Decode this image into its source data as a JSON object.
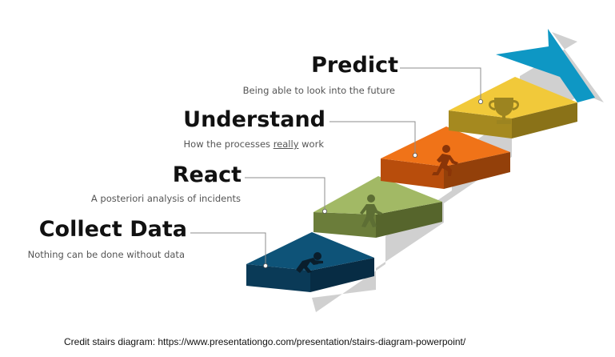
{
  "steps": [
    {
      "title": "Collect Data",
      "subtitle": "Nothing can be done without data",
      "icon": "crouching-runner-icon",
      "top": "#0e5378",
      "front": "#0a3a57",
      "side": "#072c44"
    },
    {
      "title": "React",
      "subtitle": "A posteriori analysis of incidents",
      "icon": "walking-person-icon",
      "top": "#a2b965",
      "front": "#6b7d3a",
      "side": "#56652c"
    },
    {
      "title": "Understand",
      "subtitle_pre": "How the processes ",
      "subtitle_em": "really",
      "subtitle_post": " work",
      "icon": "running-person-icon",
      "top": "#f07318",
      "front": "#b84d0c",
      "side": "#93400a"
    },
    {
      "title": "Predict",
      "subtitle": "Being able to look into the future",
      "icon": "trophy-icon",
      "top": "#f1c93a",
      "front": "#a5891f",
      "side": "#8a7218"
    }
  ],
  "arrow_color": "#0e97c4",
  "credit": "Credit stairs diagram: https://www.presentationgo.com/presentation/stairs-diagram-powerpoint/"
}
